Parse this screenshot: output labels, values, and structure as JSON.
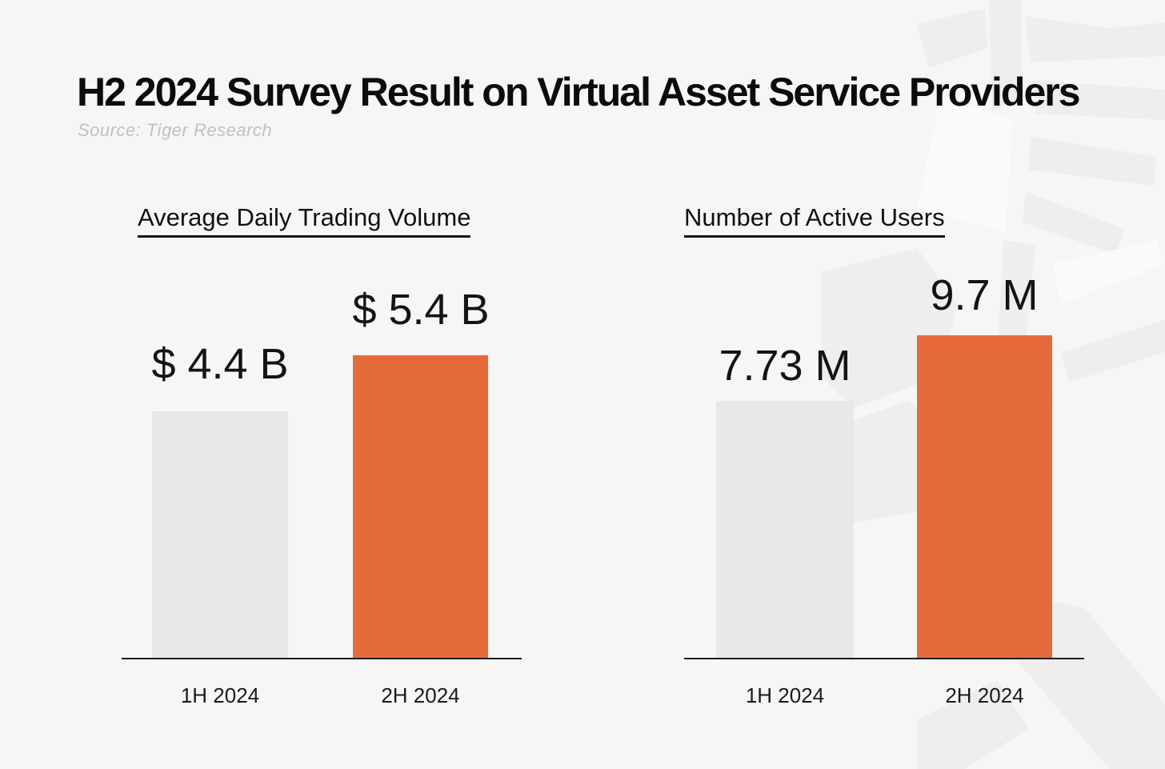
{
  "page": {
    "title": "H2 2024 Survey Result on Virtual Asset Service Providers",
    "source": "Source: Tiger Research"
  },
  "colors": {
    "background": "#F7F6F4",
    "accent_orange": "#E66B3C",
    "neutral_gray_bar": "#E9E8E6",
    "axis": "#1C1C1C",
    "watermark_gray": "#EFEEEC",
    "source_text": "#C2C1C0"
  },
  "icons": {
    "watermark": "tiger-logo-watermark"
  },
  "chart_data": [
    {
      "type": "bar",
      "title": "Average Daily Trading Volume",
      "categories": [
        "1H 2024",
        "2H 2024"
      ],
      "values": [
        4.4,
        5.4
      ],
      "unit": "USD billions",
      "value_labels": [
        "$ 4.4 B",
        "$ 5.4 B"
      ],
      "bar_colors": [
        "#E9E8E6",
        "#E66B3C"
      ],
      "ylim": [
        0,
        6
      ],
      "grid": false,
      "legend": "none"
    },
    {
      "type": "bar",
      "title": "Number of Active Users",
      "categories": [
        "1H 2024",
        "2H 2024"
      ],
      "values": [
        7.73,
        9.7
      ],
      "unit": "millions of users",
      "value_labels": [
        "7.73 M",
        "9.7 M"
      ],
      "bar_colors": [
        "#E9E8E6",
        "#E66B3C"
      ],
      "ylim": [
        0,
        11
      ],
      "grid": false,
      "legend": "none"
    }
  ]
}
